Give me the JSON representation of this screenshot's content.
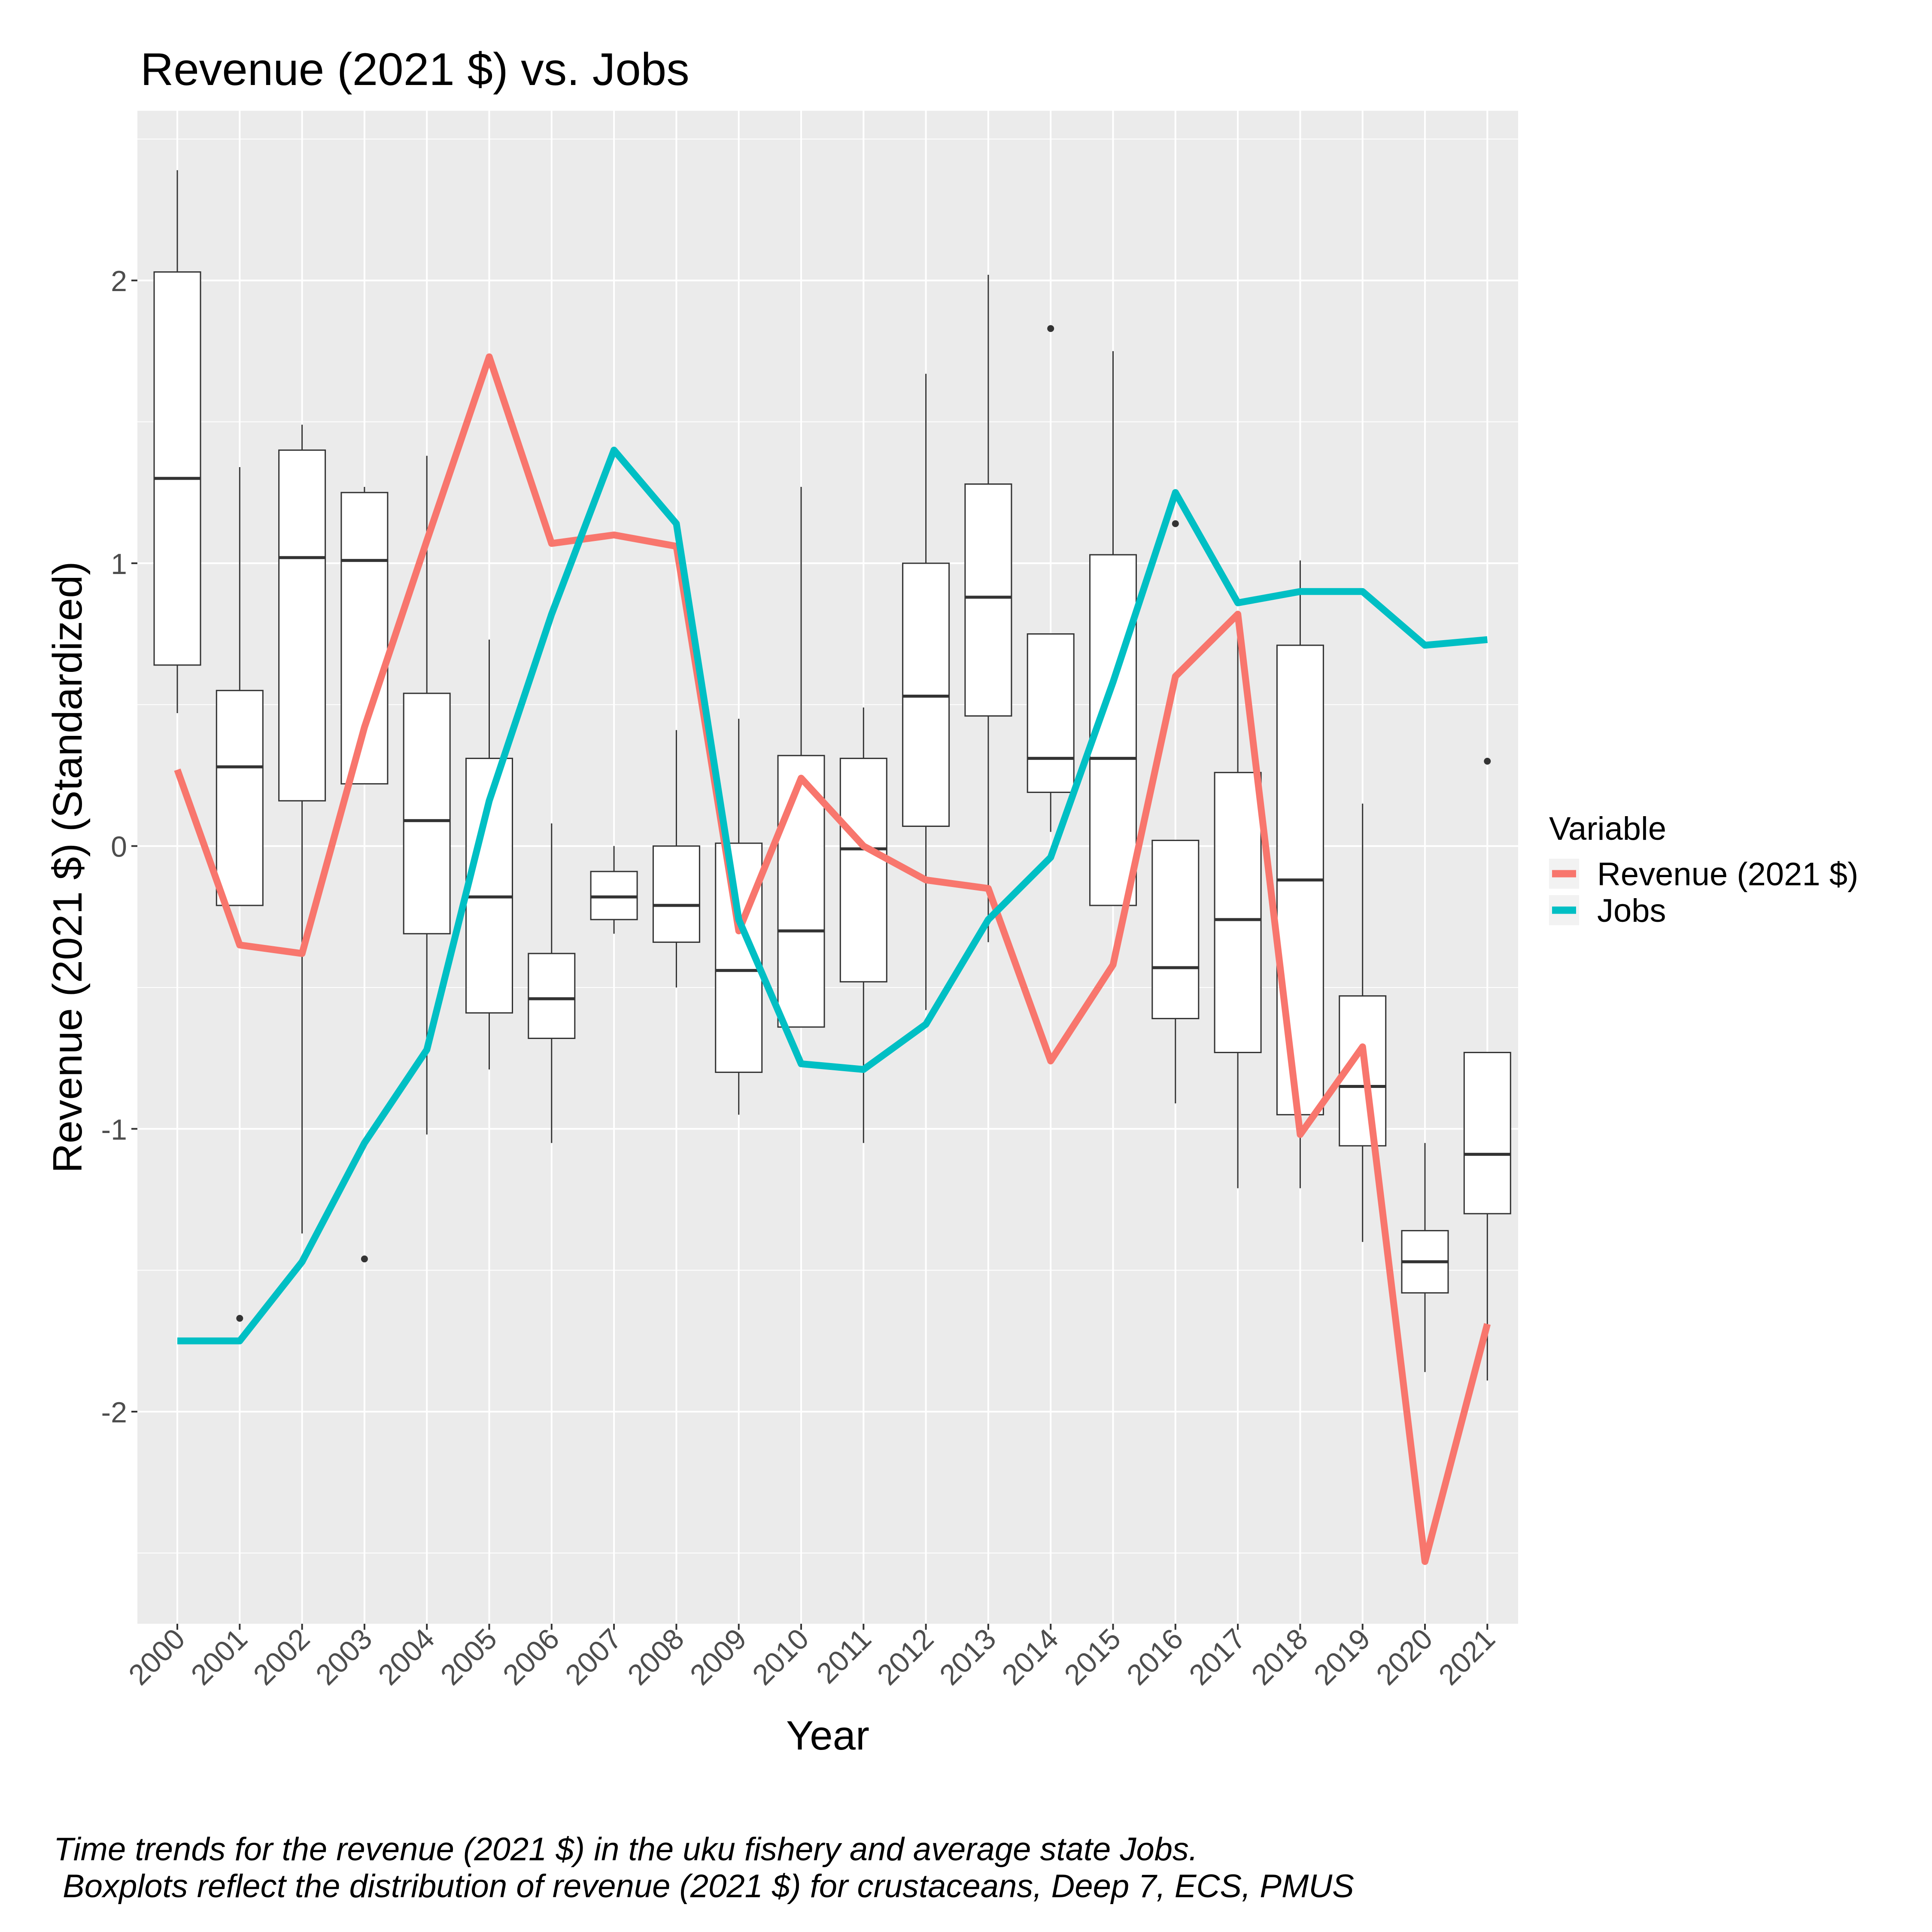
{
  "chart_data": {
    "type": "line",
    "title": "Revenue (2021 $) vs. Jobs",
    "xlabel": "Year",
    "ylabel": "Revenue (2021 $) (Standardized)",
    "ylim": [
      -2.75,
      2.6
    ],
    "y_ticks": [
      -2,
      -1,
      0,
      1,
      2
    ],
    "y_tick_labels": [
      "-2",
      "-1",
      "0",
      "1",
      "2"
    ],
    "categories": [
      "2000",
      "2001",
      "2002",
      "2003",
      "2004",
      "2005",
      "2006",
      "2007",
      "2008",
      "2009",
      "2010",
      "2011",
      "2012",
      "2013",
      "2014",
      "2015",
      "2016",
      "2017",
      "2018",
      "2019",
      "2020",
      "2021"
    ],
    "grid": true,
    "legend": {
      "title": "Variable",
      "position": "right",
      "entries": [
        "Revenue (2021 $)",
        "Jobs"
      ]
    },
    "series": [
      {
        "name": "Revenue (2021 $)",
        "color": "#F8766D",
        "values": [
          0.27,
          -0.35,
          -0.38,
          0.42,
          1.08,
          1.73,
          1.07,
          1.1,
          1.06,
          -0.3,
          0.24,
          0.0,
          -0.12,
          -0.15,
          -0.76,
          -0.42,
          0.6,
          0.82,
          -1.02,
          -0.71,
          -2.53,
          -1.69
        ]
      },
      {
        "name": "Jobs",
        "color": "#00BFC4",
        "values": [
          -1.75,
          -1.75,
          -1.47,
          -1.05,
          -0.72,
          0.16,
          0.82,
          1.4,
          1.14,
          -0.26,
          -0.77,
          -0.79,
          -0.63,
          -0.26,
          -0.04,
          0.58,
          1.25,
          0.86,
          0.9,
          0.9,
          0.71,
          0.73
        ]
      }
    ],
    "boxplots": [
      {
        "year": "2000",
        "lower": 0.47,
        "q1": 0.64,
        "median": 1.3,
        "q3": 2.03,
        "upper": 2.39,
        "outliers": []
      },
      {
        "year": "2001",
        "lower": -0.21,
        "q1": -0.21,
        "median": 0.28,
        "q3": 0.55,
        "upper": 1.34,
        "outliers": [
          -1.67
        ]
      },
      {
        "year": "2002",
        "lower": -1.37,
        "q1": 0.16,
        "median": 1.02,
        "q3": 1.4,
        "upper": 1.49,
        "outliers": []
      },
      {
        "year": "2003",
        "lower": 0.22,
        "q1": 0.22,
        "median": 1.01,
        "q3": 1.25,
        "upper": 1.27,
        "outliers": [
          -1.46
        ]
      },
      {
        "year": "2004",
        "lower": -1.02,
        "q1": -0.31,
        "median": 0.09,
        "q3": 0.54,
        "upper": 1.38,
        "outliers": []
      },
      {
        "year": "2005",
        "lower": -0.79,
        "q1": -0.59,
        "median": -0.18,
        "q3": 0.31,
        "upper": 0.73,
        "outliers": []
      },
      {
        "year": "2006",
        "lower": -1.05,
        "q1": -0.68,
        "median": -0.54,
        "q3": -0.38,
        "upper": 0.08,
        "outliers": []
      },
      {
        "year": "2007",
        "lower": -0.31,
        "q1": -0.26,
        "median": -0.18,
        "q3": -0.09,
        "upper": 0.0,
        "outliers": []
      },
      {
        "year": "2008",
        "lower": -0.5,
        "q1": -0.34,
        "median": -0.21,
        "q3": 0.0,
        "upper": 0.41,
        "outliers": []
      },
      {
        "year": "2009",
        "lower": -0.95,
        "q1": -0.8,
        "median": -0.44,
        "q3": 0.01,
        "upper": 0.45,
        "outliers": []
      },
      {
        "year": "2010",
        "lower": -0.64,
        "q1": -0.64,
        "median": -0.3,
        "q3": 0.32,
        "upper": 1.27,
        "outliers": []
      },
      {
        "year": "2011",
        "lower": -1.05,
        "q1": -0.48,
        "median": -0.01,
        "q3": 0.31,
        "upper": 0.49,
        "outliers": []
      },
      {
        "year": "2012",
        "lower": -0.58,
        "q1": 0.07,
        "median": 0.53,
        "q3": 1.0,
        "upper": 1.67,
        "outliers": []
      },
      {
        "year": "2013",
        "lower": -0.34,
        "q1": 0.46,
        "median": 0.88,
        "q3": 1.28,
        "upper": 2.02,
        "outliers": []
      },
      {
        "year": "2014",
        "lower": 0.05,
        "q1": 0.19,
        "median": 0.31,
        "q3": 0.75,
        "upper": 0.75,
        "outliers": [
          1.83
        ]
      },
      {
        "year": "2015",
        "lower": -0.21,
        "q1": -0.21,
        "median": 0.31,
        "q3": 1.03,
        "upper": 1.75,
        "outliers": []
      },
      {
        "year": "2016",
        "lower": -0.91,
        "q1": -0.61,
        "median": -0.43,
        "q3": 0.02,
        "upper": 0.02,
        "outliers": [
          1.14
        ]
      },
      {
        "year": "2017",
        "lower": -1.21,
        "q1": -0.73,
        "median": -0.26,
        "q3": 0.26,
        "upper": 0.82,
        "outliers": []
      },
      {
        "year": "2018",
        "lower": -1.21,
        "q1": -0.95,
        "median": -0.12,
        "q3": 0.71,
        "upper": 1.01,
        "outliers": []
      },
      {
        "year": "2019",
        "lower": -1.4,
        "q1": -1.06,
        "median": -0.85,
        "q3": -0.53,
        "upper": 0.15,
        "outliers": []
      },
      {
        "year": "2020",
        "lower": -1.86,
        "q1": -1.58,
        "median": -1.47,
        "q3": -1.36,
        "upper": -1.05,
        "outliers": []
      },
      {
        "year": "2021",
        "lower": -1.89,
        "q1": -1.3,
        "median": -1.09,
        "q3": -0.73,
        "upper": -0.73,
        "outliers": [
          0.3
        ]
      }
    ],
    "caption": [
      "Time trends for the revenue (2021 $) in the uku fishery and average state Jobs.",
      " Boxplots reflect the distribution of revenue (2021 $) for crustaceans, Deep 7, ECS, PMUS"
    ]
  }
}
